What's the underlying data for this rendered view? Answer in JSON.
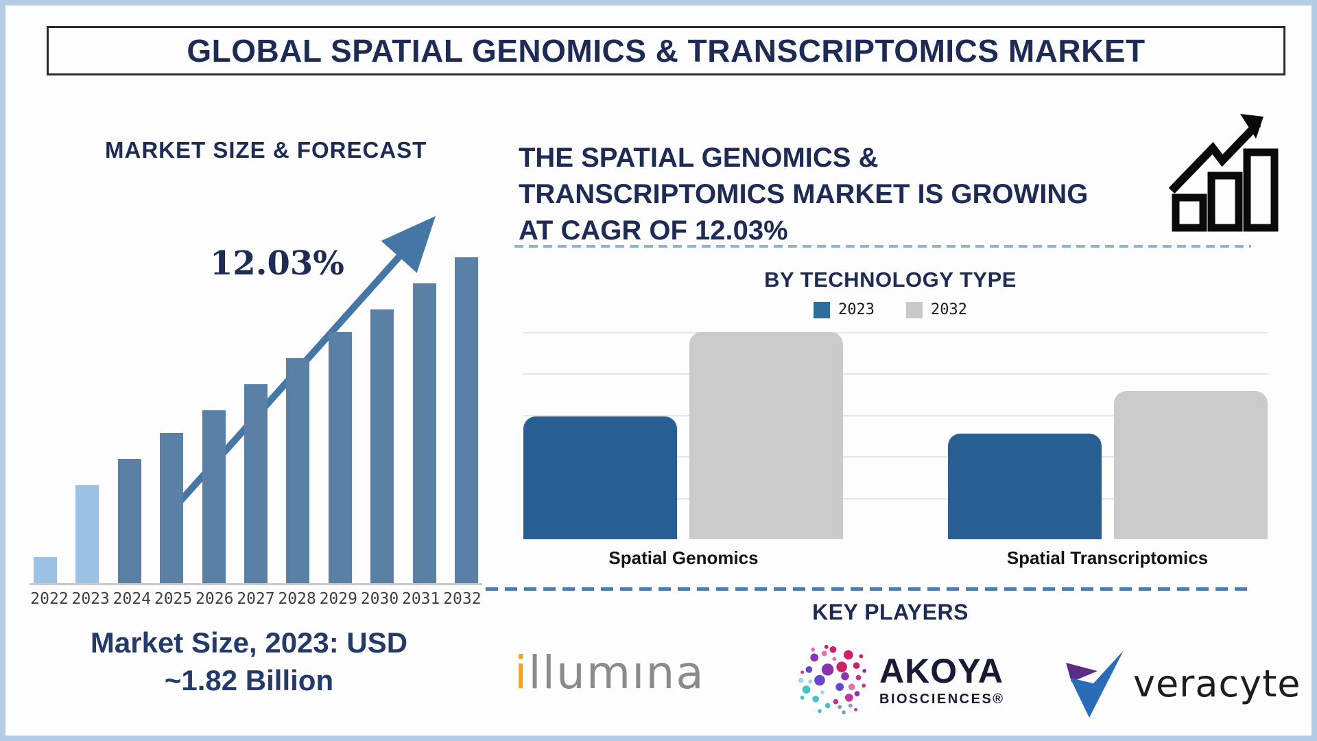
{
  "title": "GLOBAL SPATIAL GENOMICS & TRANSCRIPTOMICS MARKET",
  "left": {
    "heading": "MARKET SIZE & FORECAST",
    "cagr_label": "12.03%",
    "caption_line1": "Market Size, 2023: USD",
    "caption_line2": "~1.82 Billion"
  },
  "right": {
    "heading_line1": "THE SPATIAL GENOMICS &",
    "heading_line2": "TRANSCRIPTOMICS MARKET IS GROWING",
    "heading_line3": "AT CAGR OF 12.03%",
    "tech_heading": "BY TECHNOLOGY TYPE",
    "legend": [
      {
        "label": "2023",
        "color": "#2e6e9e"
      },
      {
        "label": "2032",
        "color": "#c9c9c9"
      }
    ],
    "key_players_heading": "KEY PLAYERS"
  },
  "logos": {
    "illumina": {
      "first_letter": "i",
      "rest": "llumına"
    },
    "akoya": {
      "name": "AKOYA",
      "sub": "BIOSCIENCES®"
    },
    "veracyte": {
      "name": "veracyte"
    }
  },
  "chart_data": [
    {
      "type": "bar",
      "title": "MARKET SIZE & FORECAST",
      "categories": [
        "2022",
        "2023",
        "2024",
        "2025",
        "2026",
        "2027",
        "2028",
        "2029",
        "2030",
        "2031",
        "2032"
      ],
      "values_relative": [
        8,
        30,
        38,
        46,
        53,
        61,
        69,
        77,
        84,
        92,
        100
      ],
      "unit": "relative bar height, 2032 = 100 (no numeric axis shown)",
      "known_value": "2023 market size ≈ USD 1.82 Billion",
      "annotation": "12.03% CAGR growth arrow over bars",
      "highlight": "2022 and 2023 bars light blue; 2024–2032 bars steel blue",
      "xlabel": "",
      "ylabel": "",
      "grid": false
    },
    {
      "type": "bar",
      "title": "BY TECHNOLOGY TYPE",
      "categories": [
        "Spatial Genomics",
        "Spatial Transcriptomics"
      ],
      "series": [
        {
          "name": "2023",
          "values": [
            2.9,
            2.5
          ]
        },
        {
          "name": "2032",
          "values": [
            4.9,
            3.5
          ]
        }
      ],
      "unit": "gridline units (no numeric axis labels shown)",
      "ylim": [
        0,
        4.9
      ],
      "grid": true,
      "legend_position": "top"
    }
  ],
  "theme": {
    "background": "#fdfdfd",
    "frame_border": "#b5cde4",
    "navy": "#1e2b55",
    "bar_steel": "#5b80a5",
    "bar_light": "#9cc2e5",
    "bar_blue_2023": "#275f92",
    "bar_gray_2032": "#cbcbcb",
    "arrow_blue": "#4577a6",
    "dashed_light": "#8fb3d1",
    "dashed_dark": "#4a7dae",
    "axis_gray": "#c8c8c8",
    "gridline": "#e4e4e4",
    "year_label": "#404040",
    "illumina_orange": "#f6a21d",
    "illumina_gray": "#8b8b8b",
    "veracyte_blue": "#2b6cb8",
    "veracyte_purple": "#5c2d86",
    "akoya_navy": "#171b33"
  }
}
